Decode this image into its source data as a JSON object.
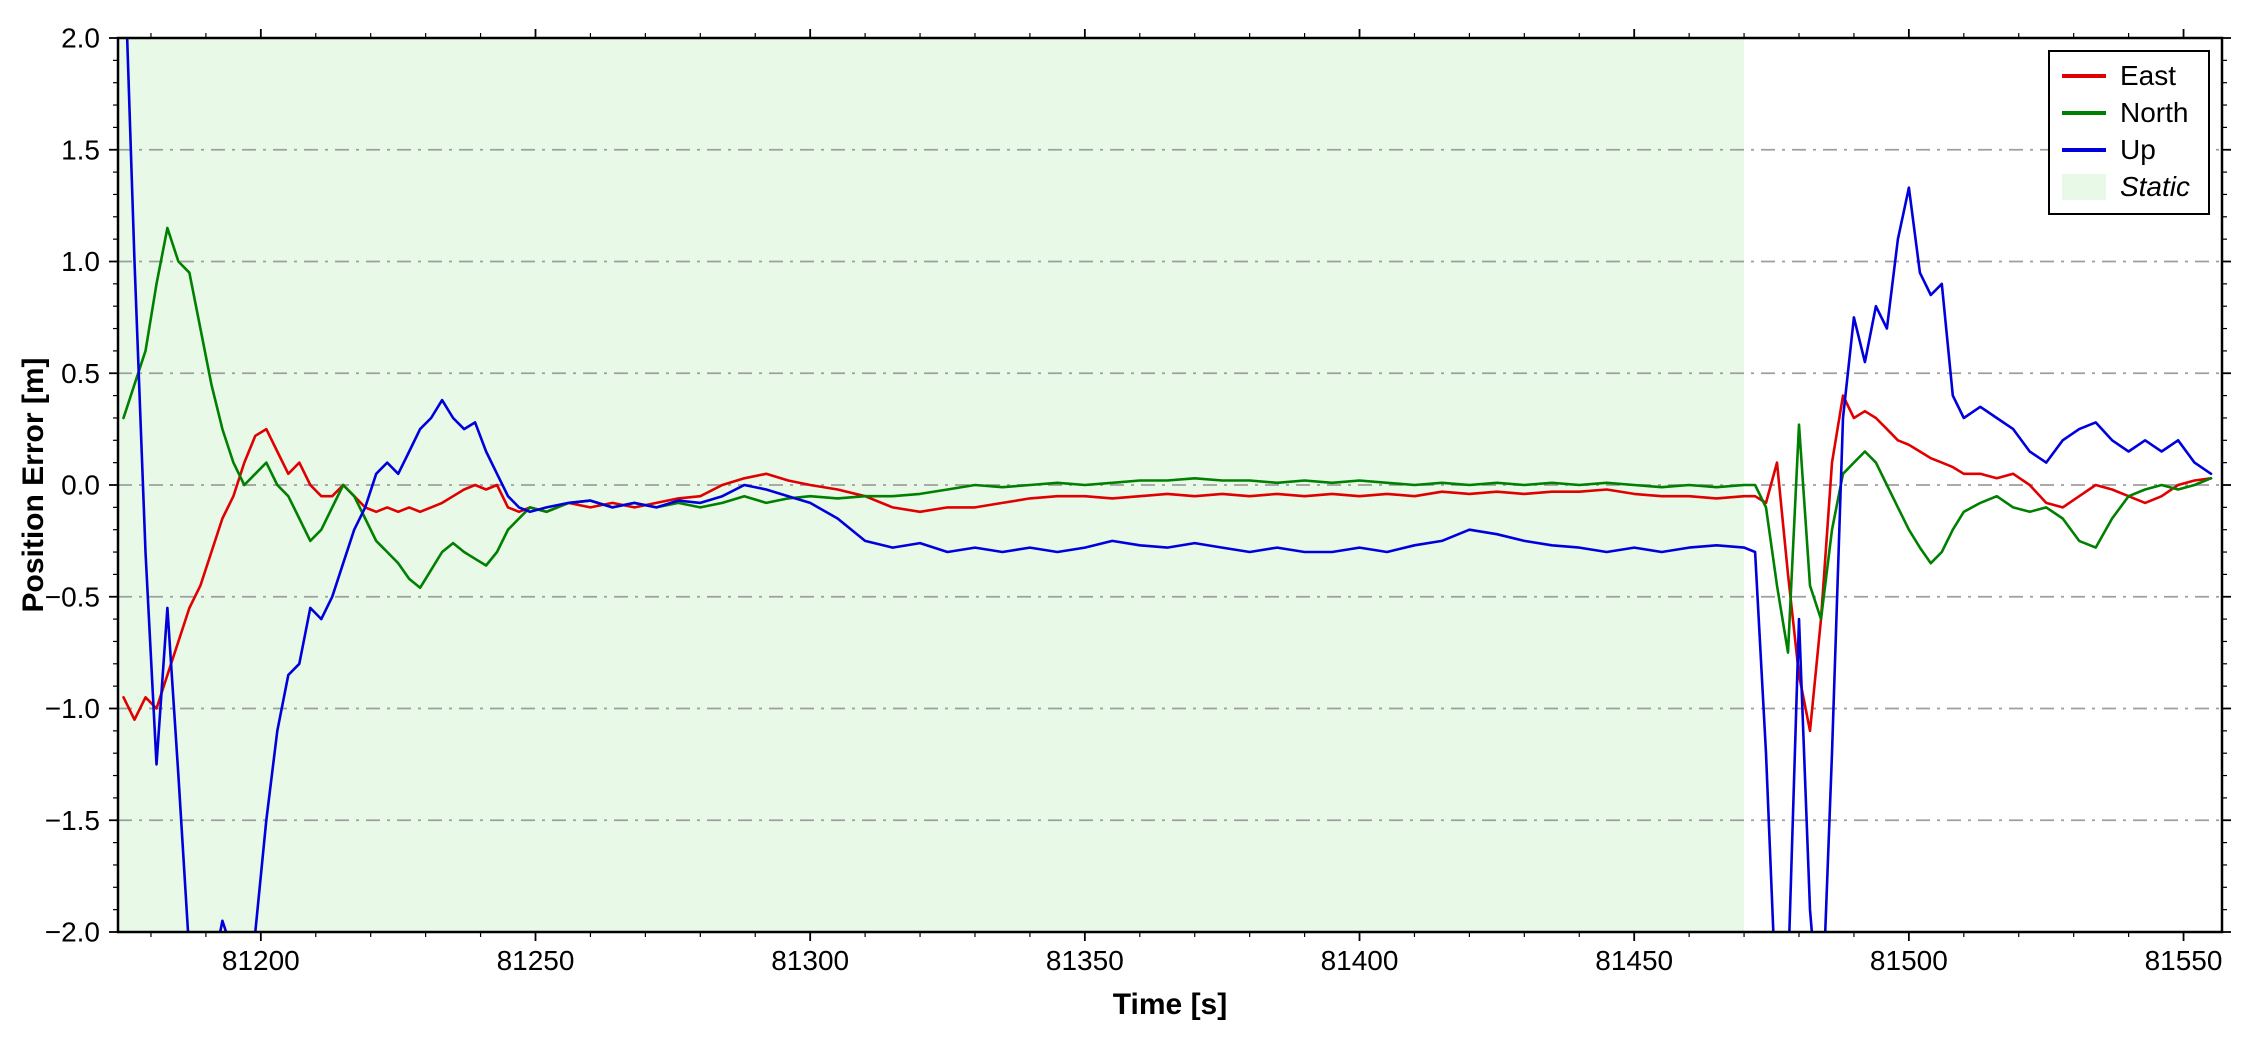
{
  "chart_data": {
    "type": "line",
    "title": "",
    "xlabel": "Time [s]",
    "ylabel": "Position Error [m]",
    "xlim": [
      81174,
      81557
    ],
    "ylim": [
      -2.0,
      2.0
    ],
    "grid": {
      "horizontal": true,
      "vertical": false,
      "style": "dash-dot",
      "color": "#9e9e9e"
    },
    "x_ticks": [
      81200,
      81250,
      81300,
      81350,
      81400,
      81450,
      81500,
      81550
    ],
    "x_tick_labels": [
      "81200",
      "81250",
      "81300",
      "81350",
      "81400",
      "81450",
      "81500",
      "81550"
    ],
    "y_ticks": [
      -2.0,
      -1.5,
      -1.0,
      -0.5,
      0.0,
      0.5,
      1.0,
      1.5,
      2.0
    ],
    "y_tick_labels": [
      "−2.0",
      "−1.5",
      "−1.0",
      "−0.5",
      "0.0",
      "0.5",
      "1.0",
      "1.5",
      "2.0"
    ],
    "static_region": {
      "label": "Static",
      "x_start": 81174,
      "x_end": 81470,
      "color": "#e8f9e8"
    },
    "legend": {
      "position": "top-right",
      "entries": [
        {
          "label": "East",
          "color": "#e00000",
          "type": "line"
        },
        {
          "label": "North",
          "color": "#008000",
          "type": "line"
        },
        {
          "label": "Up",
          "color": "#0000dd",
          "type": "line"
        },
        {
          "label": "Static",
          "color": "#e8f9e8",
          "type": "patch",
          "style": "italic"
        }
      ]
    },
    "x": [
      81175,
      81177,
      81179,
      81181,
      81183,
      81185,
      81187,
      81189,
      81191,
      81193,
      81195,
      81197,
      81199,
      81201,
      81203,
      81205,
      81207,
      81209,
      81211,
      81213,
      81215,
      81217,
      81219,
      81221,
      81223,
      81225,
      81227,
      81229,
      81231,
      81233,
      81235,
      81237,
      81239,
      81241,
      81243,
      81245,
      81247,
      81249,
      81252,
      81256,
      81260,
      81264,
      81268,
      81272,
      81276,
      81280,
      81284,
      81288,
      81292,
      81296,
      81300,
      81305,
      81310,
      81315,
      81320,
      81325,
      81330,
      81335,
      81340,
      81345,
      81350,
      81355,
      81360,
      81365,
      81370,
      81375,
      81380,
      81385,
      81390,
      81395,
      81400,
      81405,
      81410,
      81415,
      81420,
      81425,
      81430,
      81435,
      81440,
      81445,
      81450,
      81455,
      81460,
      81465,
      81470,
      81472,
      81474,
      81476,
      81478,
      81480,
      81482,
      81484,
      81486,
      81488,
      81490,
      81492,
      81494,
      81496,
      81498,
      81500,
      81502,
      81504,
      81506,
      81508,
      81510,
      81513,
      81516,
      81519,
      81522,
      81525,
      81528,
      81531,
      81534,
      81537,
      81540,
      81543,
      81546,
      81549,
      81552,
      81555
    ],
    "series": [
      {
        "name": "East",
        "color": "#e00000",
        "values": [
          -0.95,
          -1.05,
          -0.95,
          -1.0,
          -0.85,
          -0.7,
          -0.55,
          -0.45,
          -0.3,
          -0.15,
          -0.05,
          0.1,
          0.22,
          0.25,
          0.15,
          0.05,
          0.1,
          0.0,
          -0.05,
          -0.05,
          0.0,
          -0.05,
          -0.1,
          -0.12,
          -0.1,
          -0.12,
          -0.1,
          -0.12,
          -0.1,
          -0.08,
          -0.05,
          -0.02,
          0.0,
          -0.02,
          0.0,
          -0.1,
          -0.12,
          -0.1,
          -0.12,
          -0.08,
          -0.1,
          -0.08,
          -0.1,
          -0.08,
          -0.06,
          -0.05,
          0.0,
          0.03,
          0.05,
          0.02,
          0.0,
          -0.02,
          -0.05,
          -0.1,
          -0.12,
          -0.1,
          -0.1,
          -0.08,
          -0.06,
          -0.05,
          -0.05,
          -0.06,
          -0.05,
          -0.04,
          -0.05,
          -0.04,
          -0.05,
          -0.04,
          -0.05,
          -0.04,
          -0.05,
          -0.04,
          -0.05,
          -0.03,
          -0.04,
          -0.03,
          -0.04,
          -0.03,
          -0.03,
          -0.02,
          -0.04,
          -0.05,
          -0.05,
          -0.06,
          -0.05,
          -0.05,
          -0.08,
          0.1,
          -0.4,
          -0.85,
          -1.1,
          -0.6,
          0.1,
          0.4,
          0.3,
          0.33,
          0.3,
          0.25,
          0.2,
          0.18,
          0.15,
          0.12,
          0.1,
          0.08,
          0.05,
          0.05,
          0.03,
          0.05,
          0.0,
          -0.08,
          -0.1,
          -0.05,
          0.0,
          -0.02,
          -0.05,
          -0.08,
          -0.05,
          0.0,
          0.02,
          0.03
        ]
      },
      {
        "name": "North",
        "color": "#008000",
        "values": [
          0.3,
          0.45,
          0.6,
          0.9,
          1.15,
          1.0,
          0.95,
          0.7,
          0.45,
          0.25,
          0.1,
          0.0,
          0.05,
          0.1,
          0.0,
          -0.05,
          -0.15,
          -0.25,
          -0.2,
          -0.1,
          0.0,
          -0.05,
          -0.15,
          -0.25,
          -0.3,
          -0.35,
          -0.42,
          -0.46,
          -0.38,
          -0.3,
          -0.26,
          -0.3,
          -0.33,
          -0.36,
          -0.3,
          -0.2,
          -0.15,
          -0.1,
          -0.12,
          -0.08,
          -0.07,
          -0.1,
          -0.08,
          -0.1,
          -0.08,
          -0.1,
          -0.08,
          -0.05,
          -0.08,
          -0.06,
          -0.05,
          -0.06,
          -0.05,
          -0.05,
          -0.04,
          -0.02,
          0.0,
          -0.01,
          0.0,
          0.01,
          0.0,
          0.01,
          0.02,
          0.02,
          0.03,
          0.02,
          0.02,
          0.01,
          0.02,
          0.01,
          0.02,
          0.01,
          0.0,
          0.01,
          0.0,
          0.01,
          0.0,
          0.01,
          0.0,
          0.01,
          0.0,
          -0.01,
          0.0,
          -0.01,
          0.0,
          0.0,
          -0.1,
          -0.45,
          -0.75,
          0.27,
          -0.45,
          -0.6,
          -0.2,
          0.05,
          0.1,
          0.15,
          0.1,
          0.0,
          -0.1,
          -0.2,
          -0.28,
          -0.35,
          -0.3,
          -0.2,
          -0.12,
          -0.08,
          -0.05,
          -0.1,
          -0.12,
          -0.1,
          -0.15,
          -0.25,
          -0.28,
          -0.15,
          -0.05,
          -0.02,
          0.0,
          -0.02,
          0.0,
          0.03
        ]
      },
      {
        "name": "Up",
        "color": "#0000dd",
        "values": [
          2.5,
          1.0,
          -0.3,
          -1.25,
          -0.55,
          -1.3,
          -2.1,
          -2.4,
          -2.2,
          -1.95,
          -2.1,
          -2.3,
          -2.0,
          -1.5,
          -1.1,
          -0.85,
          -0.8,
          -0.55,
          -0.6,
          -0.5,
          -0.35,
          -0.2,
          -0.1,
          0.05,
          0.1,
          0.05,
          0.15,
          0.25,
          0.3,
          0.38,
          0.3,
          0.25,
          0.28,
          0.15,
          0.05,
          -0.05,
          -0.1,
          -0.12,
          -0.1,
          -0.08,
          -0.07,
          -0.1,
          -0.08,
          -0.1,
          -0.07,
          -0.08,
          -0.05,
          0.0,
          -0.02,
          -0.05,
          -0.08,
          -0.15,
          -0.25,
          -0.28,
          -0.26,
          -0.3,
          -0.28,
          -0.3,
          -0.28,
          -0.3,
          -0.28,
          -0.25,
          -0.27,
          -0.28,
          -0.26,
          -0.28,
          -0.3,
          -0.28,
          -0.3,
          -0.3,
          -0.28,
          -0.3,
          -0.27,
          -0.25,
          -0.2,
          -0.22,
          -0.25,
          -0.27,
          -0.28,
          -0.3,
          -0.28,
          -0.3,
          -0.28,
          -0.27,
          -0.28,
          -0.3,
          -1.2,
          -2.4,
          -2.2,
          -0.6,
          -1.9,
          -2.5,
          -1.2,
          0.3,
          0.75,
          0.55,
          0.8,
          0.7,
          1.1,
          1.33,
          0.95,
          0.85,
          0.9,
          0.4,
          0.3,
          0.35,
          0.3,
          0.25,
          0.15,
          0.1,
          0.2,
          0.25,
          0.28,
          0.2,
          0.15,
          0.2,
          0.15,
          0.2,
          0.1,
          0.05
        ]
      }
    ]
  }
}
